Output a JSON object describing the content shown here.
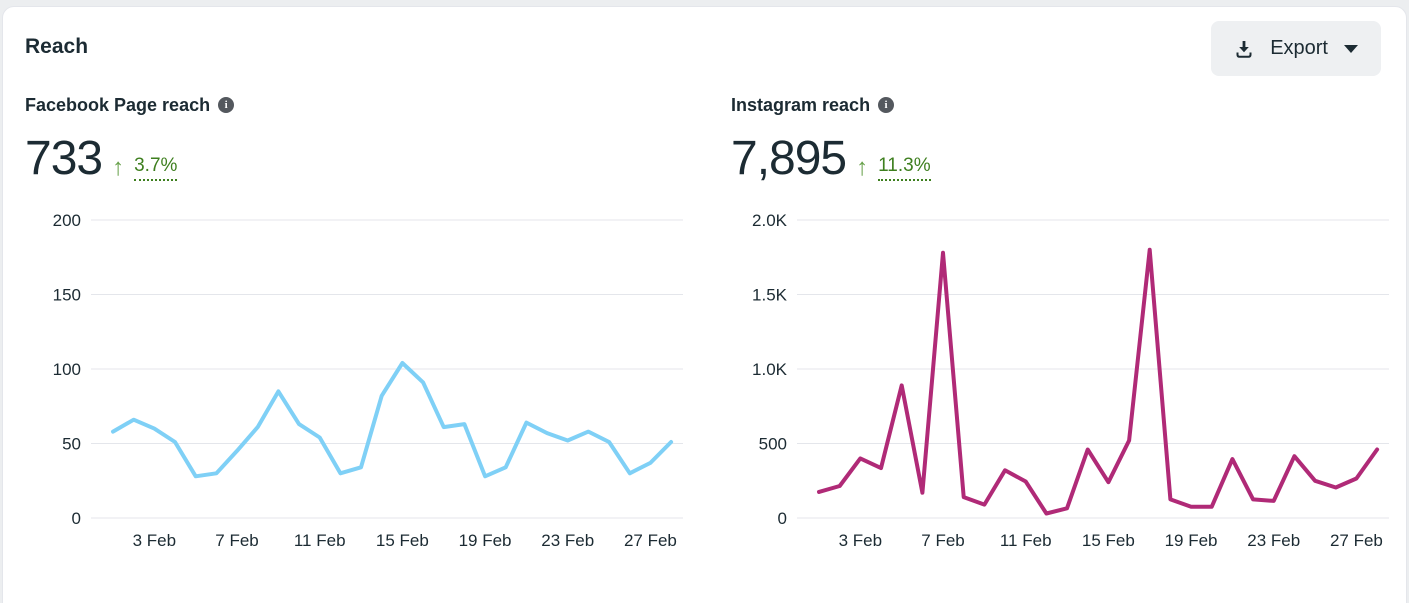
{
  "panel": {
    "title": "Reach"
  },
  "export": {
    "label": "Export",
    "icons": [
      "download-icon",
      "caret-down-icon"
    ]
  },
  "colors": {
    "facebook_line": "#7fd0f6",
    "instagram_line": "#b02a77",
    "positive_green": "#3e7f1f",
    "arrow_green": "#67a14a",
    "text_dark": "#1c2b33",
    "gridline": "#e4e6eb",
    "info_icon_bg": "#54585e",
    "button_bg": "#eef0f2",
    "card_bg": "#ffffff"
  },
  "metrics": [
    {
      "label": "Facebook Page reach",
      "info_icon": "info-icon",
      "info_glyph": "i",
      "value": "733",
      "trend_direction": "up",
      "trend_arrow": "↑",
      "change": "3.7%"
    },
    {
      "label": "Instagram reach",
      "info_icon": "info-icon",
      "info_glyph": "i",
      "value": "7,895",
      "trend_direction": "up",
      "trend_arrow": "↑",
      "change": "11.3%"
    }
  ],
  "chart_data": [
    {
      "type": "line",
      "title": "Facebook Page reach",
      "series_name": "Facebook Page reach (daily)",
      "x": [
        "1 Feb",
        "2 Feb",
        "3 Feb",
        "4 Feb",
        "5 Feb",
        "6 Feb",
        "7 Feb",
        "8 Feb",
        "9 Feb",
        "10 Feb",
        "11 Feb",
        "12 Feb",
        "13 Feb",
        "14 Feb",
        "15 Feb",
        "16 Feb",
        "17 Feb",
        "18 Feb",
        "19 Feb",
        "20 Feb",
        "21 Feb",
        "22 Feb",
        "23 Feb",
        "24 Feb",
        "25 Feb",
        "26 Feb",
        "27 Feb",
        "28 Feb"
      ],
      "values": [
        58,
        66,
        60,
        51,
        28,
        30,
        45,
        61,
        85,
        63,
        54,
        30,
        34,
        82,
        104,
        91,
        61,
        63,
        28,
        34,
        64,
        57,
        52,
        58,
        51,
        30,
        37,
        51
      ],
      "ylim": [
        0,
        200
      ],
      "y_ticks": [
        0,
        50,
        100,
        150,
        200
      ],
      "y_tick_labels": [
        "0",
        "50",
        "100",
        "150",
        "200"
      ],
      "x_tick_labels": [
        "3 Feb",
        "7 Feb",
        "11 Feb",
        "15 Feb",
        "19 Feb",
        "23 Feb",
        "27 Feb"
      ],
      "x_tick_day_indices": [
        2,
        6,
        10,
        14,
        18,
        22,
        26
      ],
      "line_color": "#7fd0f6",
      "grid": "horizontal",
      "legend": "none"
    },
    {
      "type": "line",
      "title": "Instagram reach",
      "series_name": "Instagram reach (daily)",
      "x": [
        "1 Feb",
        "2 Feb",
        "3 Feb",
        "4 Feb",
        "5 Feb",
        "6 Feb",
        "7 Feb",
        "8 Feb",
        "9 Feb",
        "10 Feb",
        "11 Feb",
        "12 Feb",
        "13 Feb",
        "14 Feb",
        "15 Feb",
        "16 Feb",
        "17 Feb",
        "18 Feb",
        "19 Feb",
        "20 Feb",
        "21 Feb",
        "22 Feb",
        "23 Feb",
        "24 Feb",
        "25 Feb",
        "26 Feb",
        "27 Feb",
        "28 Feb"
      ],
      "values": [
        175,
        215,
        400,
        335,
        890,
        170,
        1780,
        140,
        90,
        320,
        245,
        30,
        65,
        460,
        240,
        520,
        1800,
        125,
        75,
        75,
        395,
        125,
        115,
        415,
        250,
        205,
        265,
        460
      ],
      "ylim": [
        0,
        2000
      ],
      "y_ticks": [
        0,
        500,
        1000,
        1500,
        2000
      ],
      "y_tick_labels": [
        "0",
        "500",
        "1.0K",
        "1.5K",
        "2.0K"
      ],
      "x_tick_labels": [
        "3 Feb",
        "7 Feb",
        "11 Feb",
        "15 Feb",
        "19 Feb",
        "23 Feb",
        "27 Feb"
      ],
      "x_tick_day_indices": [
        2,
        6,
        10,
        14,
        18,
        22,
        26
      ],
      "line_color": "#b02a77",
      "grid": "horizontal",
      "legend": "none"
    }
  ]
}
